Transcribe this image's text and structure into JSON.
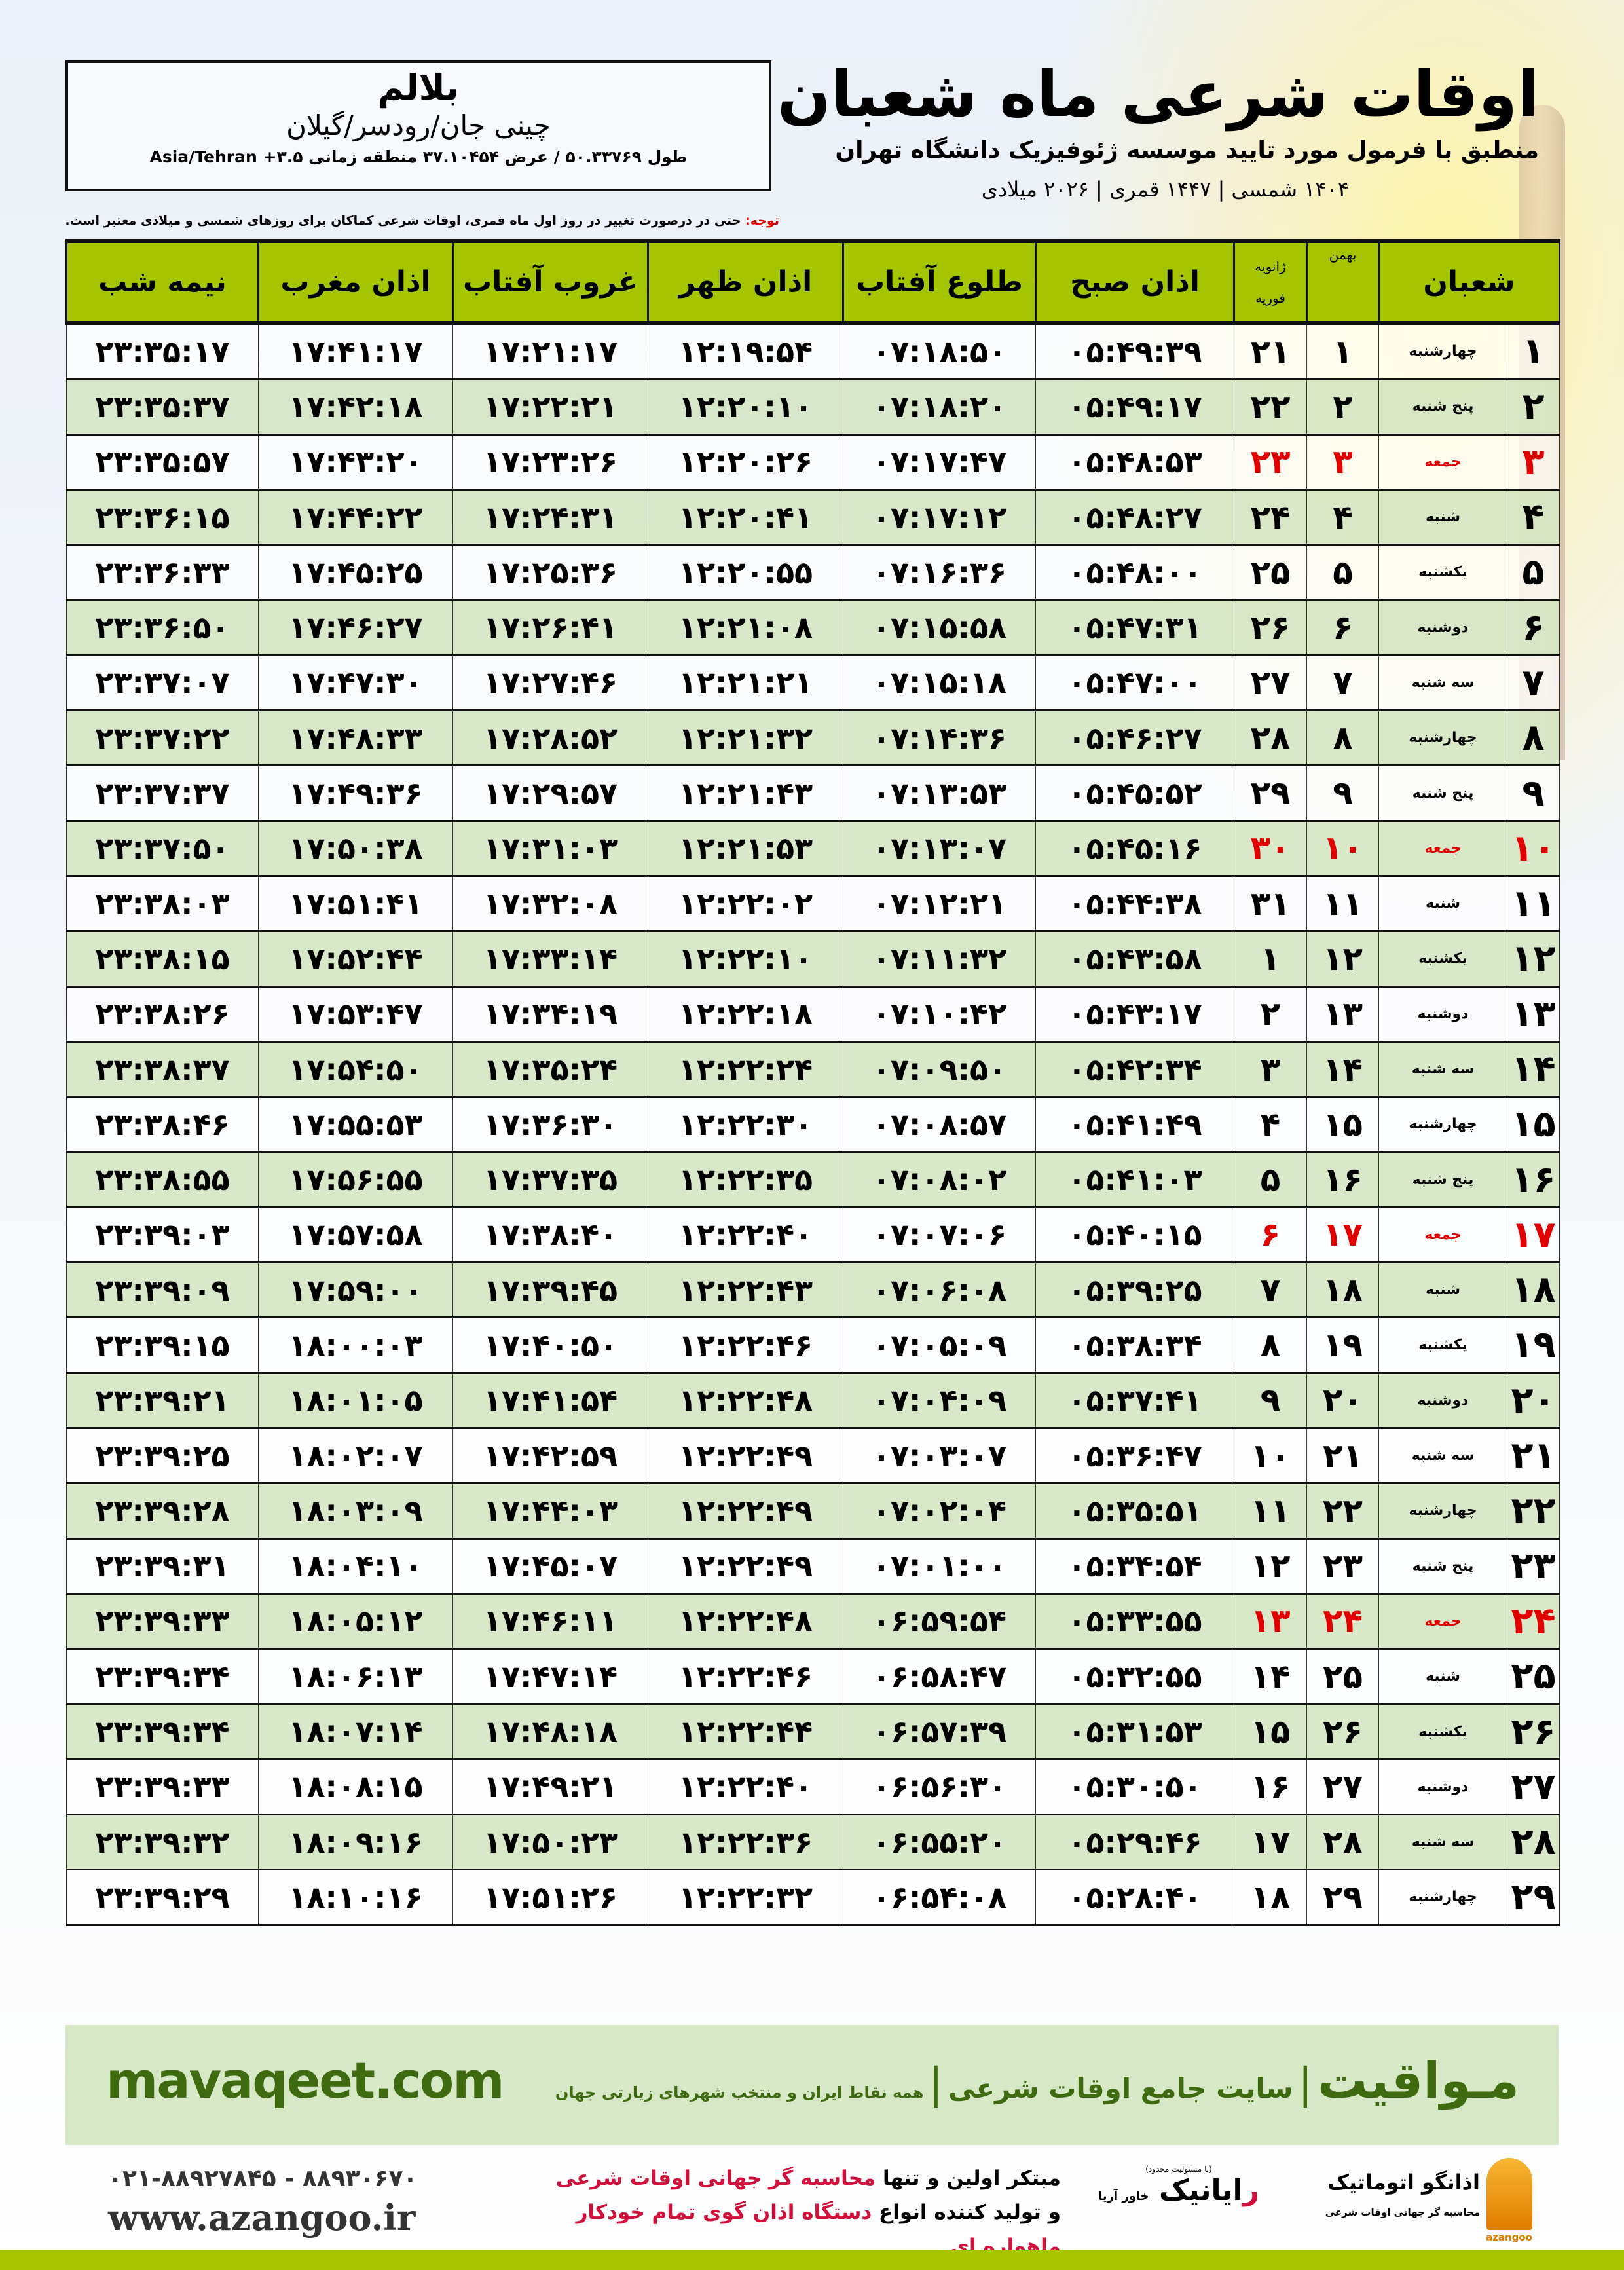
{
  "location": {
    "name": "بلالم",
    "region": "چینی جان/رودسر/گیلان",
    "coords": "طول ۵۰.۳۳۷۶۹ / عرض ۳۷.۱۰۴۵۴ منطقه زمانی ۳.۵+ Asia/Tehran"
  },
  "header": {
    "title": "اوقات شرعی ماه شعبان",
    "subtitle": "منطبق با فرمول مورد تایید موسسه ژئوفیزیک دانشگاه تهران",
    "date_line": "۱۴۰۴ شمسی | ۱۴۴۷ قمری | ۲۰۲۶ میلادی"
  },
  "note": {
    "label": "توجه:",
    "text": " حتی در درصورت تغییر در روز اول ماه قمری، اوقات شرعی کماکان برای روزهای شمسی و میلادی معتبر است."
  },
  "colors": {
    "header_green": "#a6c400",
    "row_alt": "#d6e6c4",
    "friday_red": "#e00000",
    "site_green": "#3e6b0f",
    "promo_red": "#d0103a"
  },
  "table": {
    "headers": {
      "shaban": "شعبان",
      "bahman": "بهمن",
      "january": "ژانویه",
      "february": "فوریه",
      "fajr": "اذان صبح",
      "sunrise": "طلوع آفتاب",
      "dhuhr": "اذان ظهر",
      "sunset": "غروب آفتاب",
      "maghrib": "اذان مغرب",
      "midnight": "نیمه شب"
    }
  },
  "rows": [
    {
      "day": "۱",
      "weekday": "چهارشنبه",
      "bahman": "۱",
      "greg": "۲۱",
      "fajr": "۰۵:۴۹:۳۹",
      "sunrise": "۰۷:۱۸:۵۰",
      "dhuhr": "۱۲:۱۹:۵۴",
      "sunset": "۱۷:۲۱:۱۷",
      "maghrib": "۱۷:۴۱:۱۷",
      "midnight": "۲۳:۳۵:۱۷",
      "friday": false
    },
    {
      "day": "۲",
      "weekday": "پنج شنبه",
      "bahman": "۲",
      "greg": "۲۲",
      "fajr": "۰۵:۴۹:۱۷",
      "sunrise": "۰۷:۱۸:۲۰",
      "dhuhr": "۱۲:۲۰:۱۰",
      "sunset": "۱۷:۲۲:۲۱",
      "maghrib": "۱۷:۴۲:۱۸",
      "midnight": "۲۳:۳۵:۳۷",
      "friday": false
    },
    {
      "day": "۳",
      "weekday": "جمعه",
      "bahman": "۳",
      "greg": "۲۳",
      "fajr": "۰۵:۴۸:۵۳",
      "sunrise": "۰۷:۱۷:۴۷",
      "dhuhr": "۱۲:۲۰:۲۶",
      "sunset": "۱۷:۲۳:۲۶",
      "maghrib": "۱۷:۴۳:۲۰",
      "midnight": "۲۳:۳۵:۵۷",
      "friday": true
    },
    {
      "day": "۴",
      "weekday": "شنبه",
      "bahman": "۴",
      "greg": "۲۴",
      "fajr": "۰۵:۴۸:۲۷",
      "sunrise": "۰۷:۱۷:۱۲",
      "dhuhr": "۱۲:۲۰:۴۱",
      "sunset": "۱۷:۲۴:۳۱",
      "maghrib": "۱۷:۴۴:۲۲",
      "midnight": "۲۳:۳۶:۱۵",
      "friday": false
    },
    {
      "day": "۵",
      "weekday": "یکشنبه",
      "bahman": "۵",
      "greg": "۲۵",
      "fajr": "۰۵:۴۸:۰۰",
      "sunrise": "۰۷:۱۶:۳۶",
      "dhuhr": "۱۲:۲۰:۵۵",
      "sunset": "۱۷:۲۵:۳۶",
      "maghrib": "۱۷:۴۵:۲۵",
      "midnight": "۲۳:۳۶:۳۳",
      "friday": false
    },
    {
      "day": "۶",
      "weekday": "دوشنبه",
      "bahman": "۶",
      "greg": "۲۶",
      "fajr": "۰۵:۴۷:۳۱",
      "sunrise": "۰۷:۱۵:۵۸",
      "dhuhr": "۱۲:۲۱:۰۸",
      "sunset": "۱۷:۲۶:۴۱",
      "maghrib": "۱۷:۴۶:۲۷",
      "midnight": "۲۳:۳۶:۵۰",
      "friday": false
    },
    {
      "day": "۷",
      "weekday": "سه شنبه",
      "bahman": "۷",
      "greg": "۲۷",
      "fajr": "۰۵:۴۷:۰۰",
      "sunrise": "۰۷:۱۵:۱۸",
      "dhuhr": "۱۲:۲۱:۲۱",
      "sunset": "۱۷:۲۷:۴۶",
      "maghrib": "۱۷:۴۷:۳۰",
      "midnight": "۲۳:۳۷:۰۷",
      "friday": false
    },
    {
      "day": "۸",
      "weekday": "چهارشنبه",
      "bahman": "۸",
      "greg": "۲۸",
      "fajr": "۰۵:۴۶:۲۷",
      "sunrise": "۰۷:۱۴:۳۶",
      "dhuhr": "۱۲:۲۱:۳۲",
      "sunset": "۱۷:۲۸:۵۲",
      "maghrib": "۱۷:۴۸:۳۳",
      "midnight": "۲۳:۳۷:۲۲",
      "friday": false
    },
    {
      "day": "۹",
      "weekday": "پنج شنبه",
      "bahman": "۹",
      "greg": "۲۹",
      "fajr": "۰۵:۴۵:۵۲",
      "sunrise": "۰۷:۱۳:۵۳",
      "dhuhr": "۱۲:۲۱:۴۳",
      "sunset": "۱۷:۲۹:۵۷",
      "maghrib": "۱۷:۴۹:۳۶",
      "midnight": "۲۳:۳۷:۳۷",
      "friday": false
    },
    {
      "day": "۱۰",
      "weekday": "جمعه",
      "bahman": "۱۰",
      "greg": "۳۰",
      "fajr": "۰۵:۴۵:۱۶",
      "sunrise": "۰۷:۱۳:۰۷",
      "dhuhr": "۱۲:۲۱:۵۳",
      "sunset": "۱۷:۳۱:۰۳",
      "maghrib": "۱۷:۵۰:۳۸",
      "midnight": "۲۳:۳۷:۵۰",
      "friday": true
    },
    {
      "day": "۱۱",
      "weekday": "شنبه",
      "bahman": "۱۱",
      "greg": "۳۱",
      "fajr": "۰۵:۴۴:۳۸",
      "sunrise": "۰۷:۱۲:۲۱",
      "dhuhr": "۱۲:۲۲:۰۲",
      "sunset": "۱۷:۳۲:۰۸",
      "maghrib": "۱۷:۵۱:۴۱",
      "midnight": "۲۳:۳۸:۰۳",
      "friday": false
    },
    {
      "day": "۱۲",
      "weekday": "یکشنبه",
      "bahman": "۱۲",
      "greg": "۱",
      "fajr": "۰۵:۴۳:۵۸",
      "sunrise": "۰۷:۱۱:۳۲",
      "dhuhr": "۱۲:۲۲:۱۰",
      "sunset": "۱۷:۳۳:۱۴",
      "maghrib": "۱۷:۵۲:۴۴",
      "midnight": "۲۳:۳۸:۱۵",
      "friday": false
    },
    {
      "day": "۱۳",
      "weekday": "دوشنبه",
      "bahman": "۱۳",
      "greg": "۲",
      "fajr": "۰۵:۴۳:۱۷",
      "sunrise": "۰۷:۱۰:۴۲",
      "dhuhr": "۱۲:۲۲:۱۸",
      "sunset": "۱۷:۳۴:۱۹",
      "maghrib": "۱۷:۵۳:۴۷",
      "midnight": "۲۳:۳۸:۲۶",
      "friday": false
    },
    {
      "day": "۱۴",
      "weekday": "سه شنبه",
      "bahman": "۱۴",
      "greg": "۳",
      "fajr": "۰۵:۴۲:۳۴",
      "sunrise": "۰۷:۰۹:۵۰",
      "dhuhr": "۱۲:۲۲:۲۴",
      "sunset": "۱۷:۳۵:۲۴",
      "maghrib": "۱۷:۵۴:۵۰",
      "midnight": "۲۳:۳۸:۳۷",
      "friday": false
    },
    {
      "day": "۱۵",
      "weekday": "چهارشنبه",
      "bahman": "۱۵",
      "greg": "۴",
      "fajr": "۰۵:۴۱:۴۹",
      "sunrise": "۰۷:۰۸:۵۷",
      "dhuhr": "۱۲:۲۲:۳۰",
      "sunset": "۱۷:۳۶:۳۰",
      "maghrib": "۱۷:۵۵:۵۳",
      "midnight": "۲۳:۳۸:۴۶",
      "friday": false
    },
    {
      "day": "۱۶",
      "weekday": "پنج شنبه",
      "bahman": "۱۶",
      "greg": "۵",
      "fajr": "۰۵:۴۱:۰۳",
      "sunrise": "۰۷:۰۸:۰۲",
      "dhuhr": "۱۲:۲۲:۳۵",
      "sunset": "۱۷:۳۷:۳۵",
      "maghrib": "۱۷:۵۶:۵۵",
      "midnight": "۲۳:۳۸:۵۵",
      "friday": false
    },
    {
      "day": "۱۷",
      "weekday": "جمعه",
      "bahman": "۱۷",
      "greg": "۶",
      "fajr": "۰۵:۴۰:۱۵",
      "sunrise": "۰۷:۰۷:۰۶",
      "dhuhr": "۱۲:۲۲:۴۰",
      "sunset": "۱۷:۳۸:۴۰",
      "maghrib": "۱۷:۵۷:۵۸",
      "midnight": "۲۳:۳۹:۰۳",
      "friday": true
    },
    {
      "day": "۱۸",
      "weekday": "شنبه",
      "bahman": "۱۸",
      "greg": "۷",
      "fajr": "۰۵:۳۹:۲۵",
      "sunrise": "۰۷:۰۶:۰۸",
      "dhuhr": "۱۲:۲۲:۴۳",
      "sunset": "۱۷:۳۹:۴۵",
      "maghrib": "۱۷:۵۹:۰۰",
      "midnight": "۲۳:۳۹:۰۹",
      "friday": false
    },
    {
      "day": "۱۹",
      "weekday": "یکشنبه",
      "bahman": "۱۹",
      "greg": "۸",
      "fajr": "۰۵:۳۸:۳۴",
      "sunrise": "۰۷:۰۵:۰۹",
      "dhuhr": "۱۲:۲۲:۴۶",
      "sunset": "۱۷:۴۰:۵۰",
      "maghrib": "۱۸:۰۰:۰۳",
      "midnight": "۲۳:۳۹:۱۵",
      "friday": false
    },
    {
      "day": "۲۰",
      "weekday": "دوشنبه",
      "bahman": "۲۰",
      "greg": "۹",
      "fajr": "۰۵:۳۷:۴۱",
      "sunrise": "۰۷:۰۴:۰۹",
      "dhuhr": "۱۲:۲۲:۴۸",
      "sunset": "۱۷:۴۱:۵۴",
      "maghrib": "۱۸:۰۱:۰۵",
      "midnight": "۲۳:۳۹:۲۱",
      "friday": false
    },
    {
      "day": "۲۱",
      "weekday": "سه شنبه",
      "bahman": "۲۱",
      "greg": "۱۰",
      "fajr": "۰۵:۳۶:۴۷",
      "sunrise": "۰۷:۰۳:۰۷",
      "dhuhr": "۱۲:۲۲:۴۹",
      "sunset": "۱۷:۴۲:۵۹",
      "maghrib": "۱۸:۰۲:۰۷",
      "midnight": "۲۳:۳۹:۲۵",
      "friday": false
    },
    {
      "day": "۲۲",
      "weekday": "چهارشنبه",
      "bahman": "۲۲",
      "greg": "۱۱",
      "fajr": "۰۵:۳۵:۵۱",
      "sunrise": "۰۷:۰۲:۰۴",
      "dhuhr": "۱۲:۲۲:۴۹",
      "sunset": "۱۷:۴۴:۰۳",
      "maghrib": "۱۸:۰۳:۰۹",
      "midnight": "۲۳:۳۹:۲۸",
      "friday": false
    },
    {
      "day": "۲۳",
      "weekday": "پنج شنبه",
      "bahman": "۲۳",
      "greg": "۱۲",
      "fajr": "۰۵:۳۴:۵۴",
      "sunrise": "۰۷:۰۱:۰۰",
      "dhuhr": "۱۲:۲۲:۴۹",
      "sunset": "۱۷:۴۵:۰۷",
      "maghrib": "۱۸:۰۴:۱۰",
      "midnight": "۲۳:۳۹:۳۱",
      "friday": false
    },
    {
      "day": "۲۴",
      "weekday": "جمعه",
      "bahman": "۲۴",
      "greg": "۱۳",
      "fajr": "۰۵:۳۳:۵۵",
      "sunrise": "۰۶:۵۹:۵۴",
      "dhuhr": "۱۲:۲۲:۴۸",
      "sunset": "۱۷:۴۶:۱۱",
      "maghrib": "۱۸:۰۵:۱۲",
      "midnight": "۲۳:۳۹:۳۳",
      "friday": true
    },
    {
      "day": "۲۵",
      "weekday": "شنبه",
      "bahman": "۲۵",
      "greg": "۱۴",
      "fajr": "۰۵:۳۲:۵۵",
      "sunrise": "۰۶:۵۸:۴۷",
      "dhuhr": "۱۲:۲۲:۴۶",
      "sunset": "۱۷:۴۷:۱۴",
      "maghrib": "۱۸:۰۶:۱۳",
      "midnight": "۲۳:۳۹:۳۴",
      "friday": false
    },
    {
      "day": "۲۶",
      "weekday": "یکشنبه",
      "bahman": "۲۶",
      "greg": "۱۵",
      "fajr": "۰۵:۳۱:۵۳",
      "sunrise": "۰۶:۵۷:۳۹",
      "dhuhr": "۱۲:۲۲:۴۴",
      "sunset": "۱۷:۴۸:۱۸",
      "maghrib": "۱۸:۰۷:۱۴",
      "midnight": "۲۳:۳۹:۳۴",
      "friday": false
    },
    {
      "day": "۲۷",
      "weekday": "دوشنبه",
      "bahman": "۲۷",
      "greg": "۱۶",
      "fajr": "۰۵:۳۰:۵۰",
      "sunrise": "۰۶:۵۶:۳۰",
      "dhuhr": "۱۲:۲۲:۴۰",
      "sunset": "۱۷:۴۹:۲۱",
      "maghrib": "۱۸:۰۸:۱۵",
      "midnight": "۲۳:۳۹:۳۳",
      "friday": false
    },
    {
      "day": "۲۸",
      "weekday": "سه شنبه",
      "bahman": "۲۸",
      "greg": "۱۷",
      "fajr": "۰۵:۲۹:۴۶",
      "sunrise": "۰۶:۵۵:۲۰",
      "dhuhr": "۱۲:۲۲:۳۶",
      "sunset": "۱۷:۵۰:۲۳",
      "maghrib": "۱۸:۰۹:۱۶",
      "midnight": "۲۳:۳۹:۳۲",
      "friday": false
    },
    {
      "day": "۲۹",
      "weekday": "چهارشنبه",
      "bahman": "۲۹",
      "greg": "۱۸",
      "fajr": "۰۵:۲۸:۴۰",
      "sunrise": "۰۶:۵۴:۰۸",
      "dhuhr": "۱۲:۲۲:۳۲",
      "sunset": "۱۷:۵۱:۲۶",
      "maghrib": "۱۸:۱۰:۱۶",
      "midnight": "۲۳:۳۹:۲۹",
      "friday": false
    }
  ],
  "footer": {
    "site_url": "mavaqeet.com",
    "brand": "مـواقیت",
    "separator": "|",
    "tagline": "سایت جامع اوقات شرعی",
    "tagline2": "همه نقاط ایران و منتخب شهرهای زیارتی جهان",
    "phone": "۰۲۱-۸۸۹۲۷۸۴۵ - ۸۸۹۳۰۶۷۰",
    "web": "www.azangoo.ir",
    "promo_line1_a": "مبتکر اولین و تنها ",
    "promo_line1_b": "محاسبه گر جهانی اوقات شرعی",
    "promo_line2_a": "و تولید کننده انواع ",
    "promo_line2_b": "دستگاه اذان گوی تمام خودکار ماهواره ای",
    "rayanik_small": "(با مسئولیت محدود)",
    "rayanik_name_red": "ر",
    "rayanik_name": "ایانیک",
    "rayanik_side": "خاور آریا",
    "azangoo_fa": "اذانگو اتوماتیک",
    "azangoo_sub": "محاسبه گر جهانی اوقات شرعی",
    "azangoo_en": "azangoo"
  }
}
